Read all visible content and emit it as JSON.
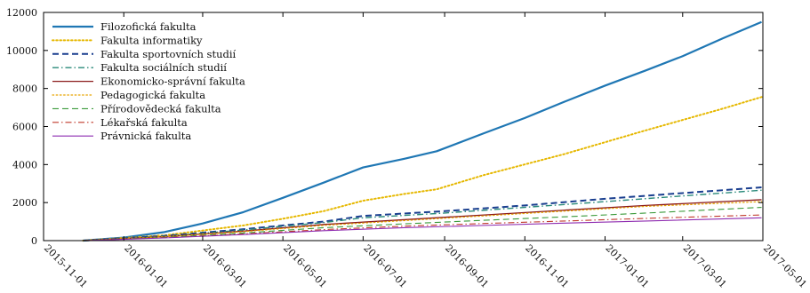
{
  "chart_data": {
    "type": "line",
    "title": "",
    "xlabel": "",
    "ylabel": "",
    "xlim": [
      "2015-11-01",
      "2017-05-01"
    ],
    "ylim": [
      0,
      12000
    ],
    "x_ticks": [
      "2015-11-01",
      "2016-01-01",
      "2016-03-01",
      "2016-05-01",
      "2016-07-01",
      "2016-09-01",
      "2016-11-01",
      "2017-01-01",
      "2017-03-01",
      "2017-05-01"
    ],
    "y_ticks": [
      0,
      2000,
      4000,
      6000,
      8000,
      10000,
      12000
    ],
    "y_tick_labels": [
      "0",
      "2000",
      "4000",
      "6000",
      "8000",
      "10000",
      "12000"
    ],
    "grid": false,
    "legend_position": "top-left",
    "series": [
      {
        "name": "Filozofická fakulta",
        "color": "#1f77b4",
        "dash": "solid",
        "width": 2.2,
        "points": [
          [
            "2015-12-01",
            0
          ],
          [
            "2016-01-01",
            160
          ],
          [
            "2016-02-01",
            450
          ],
          [
            "2016-03-01",
            900
          ],
          [
            "2016-04-01",
            1500
          ],
          [
            "2016-05-01",
            2250
          ],
          [
            "2016-06-01",
            3050
          ],
          [
            "2016-07-01",
            3850
          ],
          [
            "2016-08-01",
            4300
          ],
          [
            "2016-08-26",
            4700
          ],
          [
            "2016-10-01",
            5650
          ],
          [
            "2016-11-01",
            6450
          ],
          [
            "2016-12-01",
            7300
          ],
          [
            "2017-01-01",
            8150
          ],
          [
            "2017-02-01",
            8950
          ],
          [
            "2017-03-01",
            9700
          ],
          [
            "2017-04-01",
            10650
          ],
          [
            "2017-04-30",
            11500
          ]
        ]
      },
      {
        "name": "Fakulta informatiky",
        "color": "#e6b800",
        "dash": "dotted",
        "width": 2.0,
        "points": [
          [
            "2015-12-01",
            0
          ],
          [
            "2016-02-01",
            280
          ],
          [
            "2016-04-01",
            800
          ],
          [
            "2016-05-01",
            1150
          ],
          [
            "2016-06-01",
            1550
          ],
          [
            "2016-07-01",
            2100
          ],
          [
            "2016-08-01",
            2450
          ],
          [
            "2016-08-26",
            2700
          ],
          [
            "2016-10-01",
            3450
          ],
          [
            "2016-12-01",
            4550
          ],
          [
            "2017-02-01",
            5800
          ],
          [
            "2017-04-01",
            6950
          ],
          [
            "2017-04-30",
            7550
          ]
        ]
      },
      {
        "name": "Fakulta sportovních studií",
        "color": "#1a3f8f",
        "dash": "dashed",
        "width": 2.0,
        "points": [
          [
            "2015-12-01",
            0
          ],
          [
            "2016-02-01",
            250
          ],
          [
            "2016-04-01",
            600
          ],
          [
            "2016-06-01",
            1000
          ],
          [
            "2016-07-01",
            1300
          ],
          [
            "2016-09-01",
            1550
          ],
          [
            "2016-11-01",
            1850
          ],
          [
            "2017-01-01",
            2200
          ],
          [
            "2017-03-01",
            2500
          ],
          [
            "2017-04-30",
            2800
          ]
        ]
      },
      {
        "name": "Fakulta sociálních studií",
        "color": "#2a8a7a",
        "dash": "dashdot",
        "width": 1.4,
        "points": [
          [
            "2015-12-01",
            0
          ],
          [
            "2016-02-01",
            230
          ],
          [
            "2016-04-01",
            560
          ],
          [
            "2016-06-01",
            950
          ],
          [
            "2016-07-01",
            1200
          ],
          [
            "2016-09-01",
            1450
          ],
          [
            "2016-11-01",
            1750
          ],
          [
            "2017-01-01",
            2050
          ],
          [
            "2017-03-01",
            2350
          ],
          [
            "2017-04-30",
            2650
          ]
        ]
      },
      {
        "name": "Ekonomicko-správní fakulta",
        "color": "#8b1a1a",
        "dash": "solid",
        "width": 1.3,
        "points": [
          [
            "2015-12-01",
            0
          ],
          [
            "2016-02-01",
            210
          ],
          [
            "2016-04-01",
            500
          ],
          [
            "2016-06-01",
            850
          ],
          [
            "2016-08-01",
            1100
          ],
          [
            "2016-10-01",
            1350
          ],
          [
            "2016-12-01",
            1600
          ],
          [
            "2017-02-01",
            1850
          ],
          [
            "2017-04-30",
            2150
          ]
        ]
      },
      {
        "name": "Pedagogická fakulta",
        "color": "#e8a400",
        "dash": "dotted",
        "width": 1.2,
        "points": [
          [
            "2015-12-01",
            0
          ],
          [
            "2016-02-01",
            200
          ],
          [
            "2016-04-01",
            470
          ],
          [
            "2016-06-01",
            800
          ],
          [
            "2016-08-01",
            1050
          ],
          [
            "2016-10-01",
            1300
          ],
          [
            "2016-12-01",
            1550
          ],
          [
            "2017-02-01",
            1800
          ],
          [
            "2017-04-30",
            2050
          ]
        ]
      },
      {
        "name": "Přírodovědecká fakulta",
        "color": "#3a9a3a",
        "dash": "dashed",
        "width": 1.1,
        "points": [
          [
            "2015-12-01",
            0
          ],
          [
            "2016-02-01",
            170
          ],
          [
            "2016-04-01",
            400
          ],
          [
            "2016-06-01",
            680
          ],
          [
            "2016-08-01",
            880
          ],
          [
            "2016-10-01",
            1070
          ],
          [
            "2016-12-01",
            1250
          ],
          [
            "2017-02-01",
            1450
          ],
          [
            "2017-04-30",
            1750
          ]
        ]
      },
      {
        "name": "Lékařská fakulta",
        "color": "#c0392b",
        "dash": "dashdot",
        "width": 1.1,
        "points": [
          [
            "2015-12-01",
            0
          ],
          [
            "2016-02-01",
            150
          ],
          [
            "2016-04-01",
            350
          ],
          [
            "2016-06-01",
            580
          ],
          [
            "2016-08-01",
            760
          ],
          [
            "2016-10-01",
            900
          ],
          [
            "2016-12-01",
            1030
          ],
          [
            "2017-02-01",
            1170
          ],
          [
            "2017-04-30",
            1350
          ]
        ]
      },
      {
        "name": "Právnická fakulta",
        "color": "#8e2bb0",
        "dash": "solid",
        "width": 1.1,
        "points": [
          [
            "2015-12-01",
            0
          ],
          [
            "2016-02-01",
            140
          ],
          [
            "2016-04-01",
            320
          ],
          [
            "2016-06-01",
            520
          ],
          [
            "2016-08-01",
            680
          ],
          [
            "2016-10-01",
            800
          ],
          [
            "2016-12-01",
            920
          ],
          [
            "2017-02-01",
            1030
          ],
          [
            "2017-04-30",
            1200
          ]
        ]
      }
    ]
  }
}
